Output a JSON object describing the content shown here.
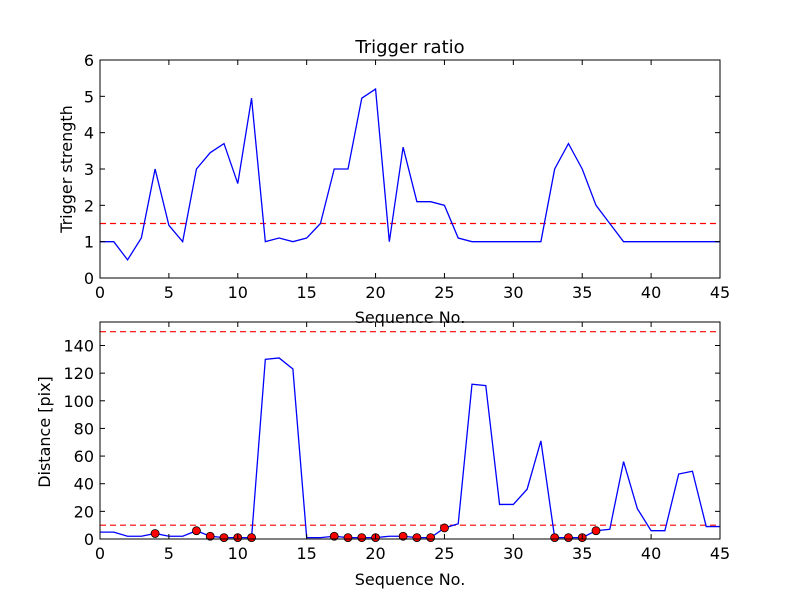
{
  "chart_data": [
    {
      "type": "line",
      "title": "Trigger ratio",
      "xlabel": "Sequence No.",
      "ylabel": "Trigger strength",
      "xlim": [
        0,
        45
      ],
      "ylim": [
        0,
        6
      ],
      "xticks": [
        0,
        5,
        10,
        15,
        20,
        25,
        30,
        35,
        40,
        45
      ],
      "yticks": [
        0,
        1,
        2,
        3,
        4,
        5,
        6
      ],
      "grid": false,
      "series": [
        {
          "color": "#0000ff",
          "x": [
            0,
            1,
            2,
            3,
            4,
            5,
            6,
            7,
            8,
            9,
            10,
            11,
            12,
            13,
            14,
            15,
            16,
            17,
            18,
            19,
            20,
            21,
            22,
            23,
            24,
            25,
            26,
            27,
            28,
            29,
            30,
            31,
            32,
            33,
            34,
            35,
            36,
            37,
            38,
            39,
            40,
            41,
            42,
            43,
            44,
            45
          ],
          "y": [
            1.0,
            1.0,
            0.5,
            1.1,
            3.0,
            1.45,
            1.0,
            3.0,
            3.45,
            3.7,
            2.6,
            4.95,
            1.0,
            1.1,
            1.0,
            1.1,
            1.5,
            3.0,
            3.0,
            4.95,
            5.2,
            1.0,
            3.6,
            2.1,
            2.1,
            2.0,
            1.1,
            1.0,
            1.0,
            1.0,
            1.0,
            1.0,
            1.0,
            3.0,
            3.7,
            3.0,
            2.0,
            1.5,
            1.0,
            1.0,
            1.0,
            1.0,
            1.0,
            1.0,
            1.0,
            1.0
          ]
        }
      ],
      "reference_lines": [
        {
          "y": 1.5,
          "color": "#ff0000",
          "style": "dashed"
        }
      ]
    },
    {
      "type": "line",
      "title": "",
      "xlabel": "Sequence No.",
      "ylabel": "Distance [pix]",
      "xlim": [
        0,
        45
      ],
      "ylim": [
        0,
        157
      ],
      "xticks": [
        0,
        5,
        10,
        15,
        20,
        25,
        30,
        35,
        40,
        45
      ],
      "yticks": [
        0,
        20,
        40,
        60,
        80,
        100,
        120,
        140
      ],
      "grid": false,
      "series": [
        {
          "color": "#0000ff",
          "x": [
            0,
            1,
            2,
            3,
            4,
            5,
            6,
            7,
            8,
            9,
            10,
            11,
            12,
            13,
            14,
            15,
            16,
            17,
            18,
            19,
            20,
            21,
            22,
            23,
            24,
            25,
            26,
            27,
            28,
            29,
            30,
            31,
            32,
            33,
            34,
            35,
            36,
            37,
            38,
            39,
            40,
            41,
            42,
            43,
            44,
            45
          ],
          "y": [
            5,
            5,
            2,
            2,
            4,
            2,
            2,
            6,
            2,
            1,
            1,
            1,
            130,
            131,
            123,
            1,
            1,
            2,
            1,
            1,
            1,
            2,
            2,
            1,
            1,
            8,
            11,
            112,
            111,
            25,
            25,
            36,
            71,
            1,
            1,
            1,
            6,
            7,
            56,
            22,
            6,
            6,
            47,
            49,
            9,
            9
          ]
        }
      ],
      "markers": {
        "color": "#ff0000",
        "x": [
          4,
          7,
          8,
          9,
          10,
          11,
          17,
          18,
          19,
          20,
          22,
          23,
          24,
          25,
          33,
          34,
          35,
          36
        ],
        "y": [
          4,
          6,
          2,
          1,
          1,
          1,
          2,
          1,
          1,
          1,
          2,
          1,
          1,
          8,
          1,
          1,
          1,
          6
        ]
      },
      "reference_lines": [
        {
          "y": 10,
          "color": "#ff0000",
          "style": "dashed"
        },
        {
          "y": 150,
          "color": "#ff0000",
          "style": "dashed"
        }
      ]
    }
  ]
}
